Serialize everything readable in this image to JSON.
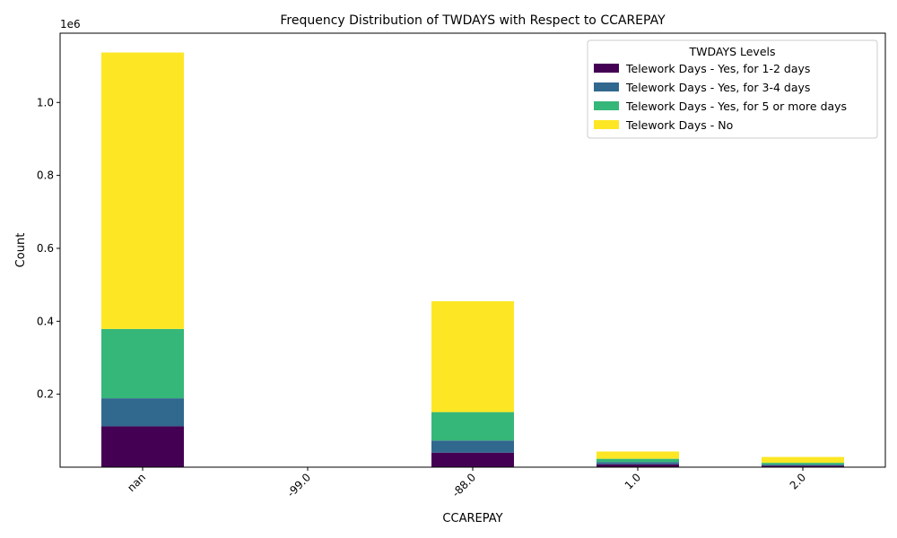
{
  "chart_data": {
    "type": "bar",
    "stacked": true,
    "title": "Frequency Distribution of TWDAYS with Respect to CCAREPAY",
    "xlabel": "CCAREPAY",
    "ylabel": "Count",
    "y_offset_label": "1e6",
    "categories": [
      "nan",
      "-99.0",
      "-88.0",
      "1.0",
      "2.0"
    ],
    "ylim": [
      0,
      1190000
    ],
    "yticks": [
      200000,
      400000,
      600000,
      800000,
      1000000
    ],
    "ytick_labels": [
      "0.2",
      "0.4",
      "0.6",
      "0.8",
      "1.0"
    ],
    "legend_title": "TWDAYS Levels",
    "legend_position": "top-right",
    "grid": false,
    "series": [
      {
        "name": "Telework Days - Yes, for 1-2 days",
        "color": "#440154",
        "values": [
          112000,
          0,
          40000,
          8000,
          4000
        ]
      },
      {
        "name": "Telework Days - Yes, for 3-4 days",
        "color": "#31688e",
        "values": [
          77000,
          0,
          33000,
          6000,
          3000
        ]
      },
      {
        "name": "Telework Days - Yes, for 5 or more days",
        "color": "#35b779",
        "values": [
          190000,
          0,
          78000,
          9000,
          5000
        ]
      },
      {
        "name": "Telework Days - No",
        "color": "#fde725",
        "values": [
          758000,
          0,
          304000,
          20000,
          16000
        ]
      }
    ]
  }
}
